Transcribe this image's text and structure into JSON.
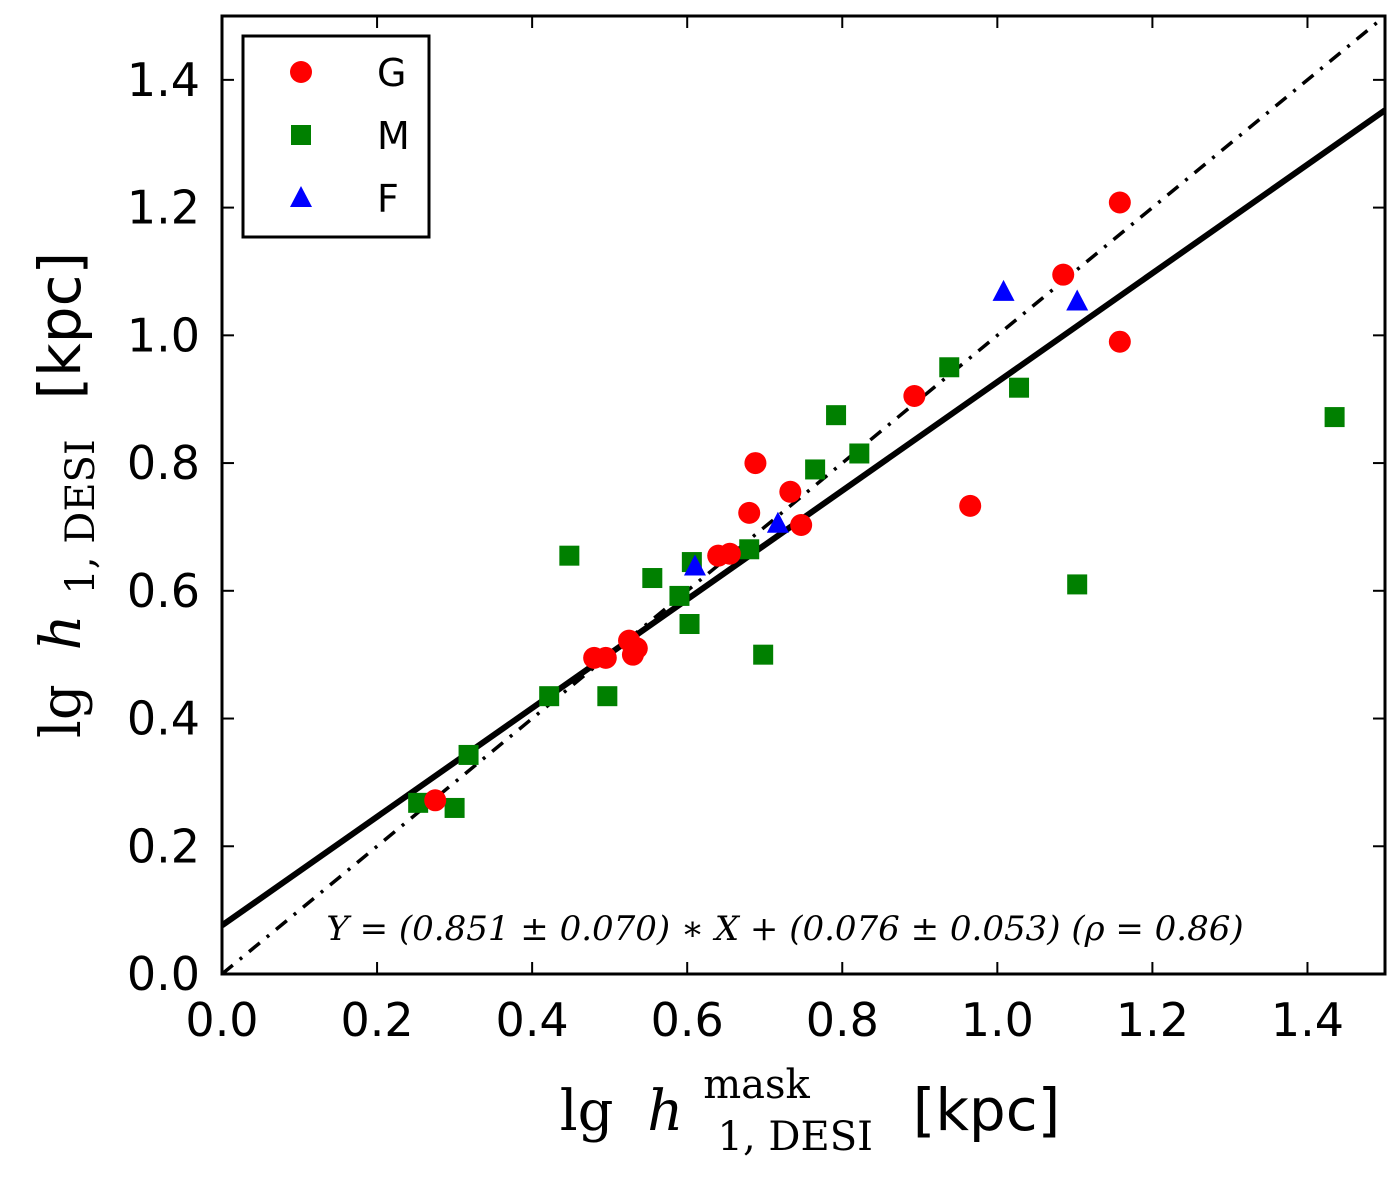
{
  "chart_data": {
    "type": "scatter",
    "title": "",
    "xlabel": {
      "base": "lg",
      "symbol": "h",
      "superscript": "mask",
      "subscript": "1, DESI",
      "unit": "[kpc]"
    },
    "ylabel": {
      "base": "lg",
      "symbol": "h",
      "subscript": "1, DESI",
      "unit": "[kpc]"
    },
    "xlim": [
      0.0,
      1.5
    ],
    "ylim": [
      0.0,
      1.5
    ],
    "x_ticks": [
      "0.0",
      "0.2",
      "0.4",
      "0.6",
      "0.8",
      "1.0",
      "1.2",
      "1.4"
    ],
    "y_ticks": [
      "0.0",
      "0.2",
      "0.4",
      "0.6",
      "0.8",
      "1.0",
      "1.2",
      "1.4"
    ],
    "x_tick_values": [
      0.0,
      0.2,
      0.4,
      0.6,
      0.8,
      1.0,
      1.2,
      1.4
    ],
    "y_tick_values": [
      0.0,
      0.2,
      0.4,
      0.6,
      0.8,
      1.0,
      1.2,
      1.4
    ],
    "grid": false,
    "legend_position": "top-left",
    "series": [
      {
        "name": "G",
        "marker": "circle",
        "color": "#ff0000",
        "points": [
          [
            0.275,
            0.272
          ],
          [
            0.48,
            0.495
          ],
          [
            0.495,
            0.495
          ],
          [
            0.525,
            0.522
          ],
          [
            0.53,
            0.5
          ],
          [
            0.535,
            0.51
          ],
          [
            0.64,
            0.655
          ],
          [
            0.655,
            0.658
          ],
          [
            0.68,
            0.722
          ],
          [
            0.688,
            0.8
          ],
          [
            0.733,
            0.755
          ],
          [
            0.747,
            0.703
          ],
          [
            0.893,
            0.905
          ],
          [
            0.965,
            0.733
          ],
          [
            1.085,
            1.095
          ],
          [
            1.158,
            1.208
          ],
          [
            1.158,
            0.99
          ]
        ]
      },
      {
        "name": "M",
        "marker": "square",
        "color": "#008000",
        "points": [
          [
            0.253,
            0.268
          ],
          [
            0.3,
            0.26
          ],
          [
            0.318,
            0.343
          ],
          [
            0.422,
            0.435
          ],
          [
            0.448,
            0.655
          ],
          [
            0.497,
            0.435
          ],
          [
            0.555,
            0.62
          ],
          [
            0.59,
            0.592
          ],
          [
            0.603,
            0.548
          ],
          [
            0.606,
            0.645
          ],
          [
            0.68,
            0.665
          ],
          [
            0.698,
            0.5
          ],
          [
            0.765,
            0.79
          ],
          [
            0.792,
            0.875
          ],
          [
            0.822,
            0.815
          ],
          [
            0.938,
            0.95
          ],
          [
            1.028,
            0.918
          ],
          [
            1.103,
            0.61
          ],
          [
            1.435,
            0.872
          ]
        ]
      },
      {
        "name": "F",
        "marker": "triangle",
        "color": "#0000ff",
        "points": [
          [
            0.61,
            0.638
          ],
          [
            0.717,
            0.705
          ],
          [
            1.008,
            1.068
          ],
          [
            1.103,
            1.053
          ]
        ]
      }
    ],
    "lines": [
      {
        "name": "fit",
        "style": "solid",
        "color": "#000000",
        "slope": 0.851,
        "intercept": 0.076
      },
      {
        "name": "one-to-one",
        "style": "dash-dot",
        "color": "#000000",
        "slope": 1.0,
        "intercept": 0.0
      }
    ],
    "annotation": "Y = (0.851 ± 0.070) ∗ X + (0.076 ± 0.053)  (ρ = 0.86)"
  }
}
